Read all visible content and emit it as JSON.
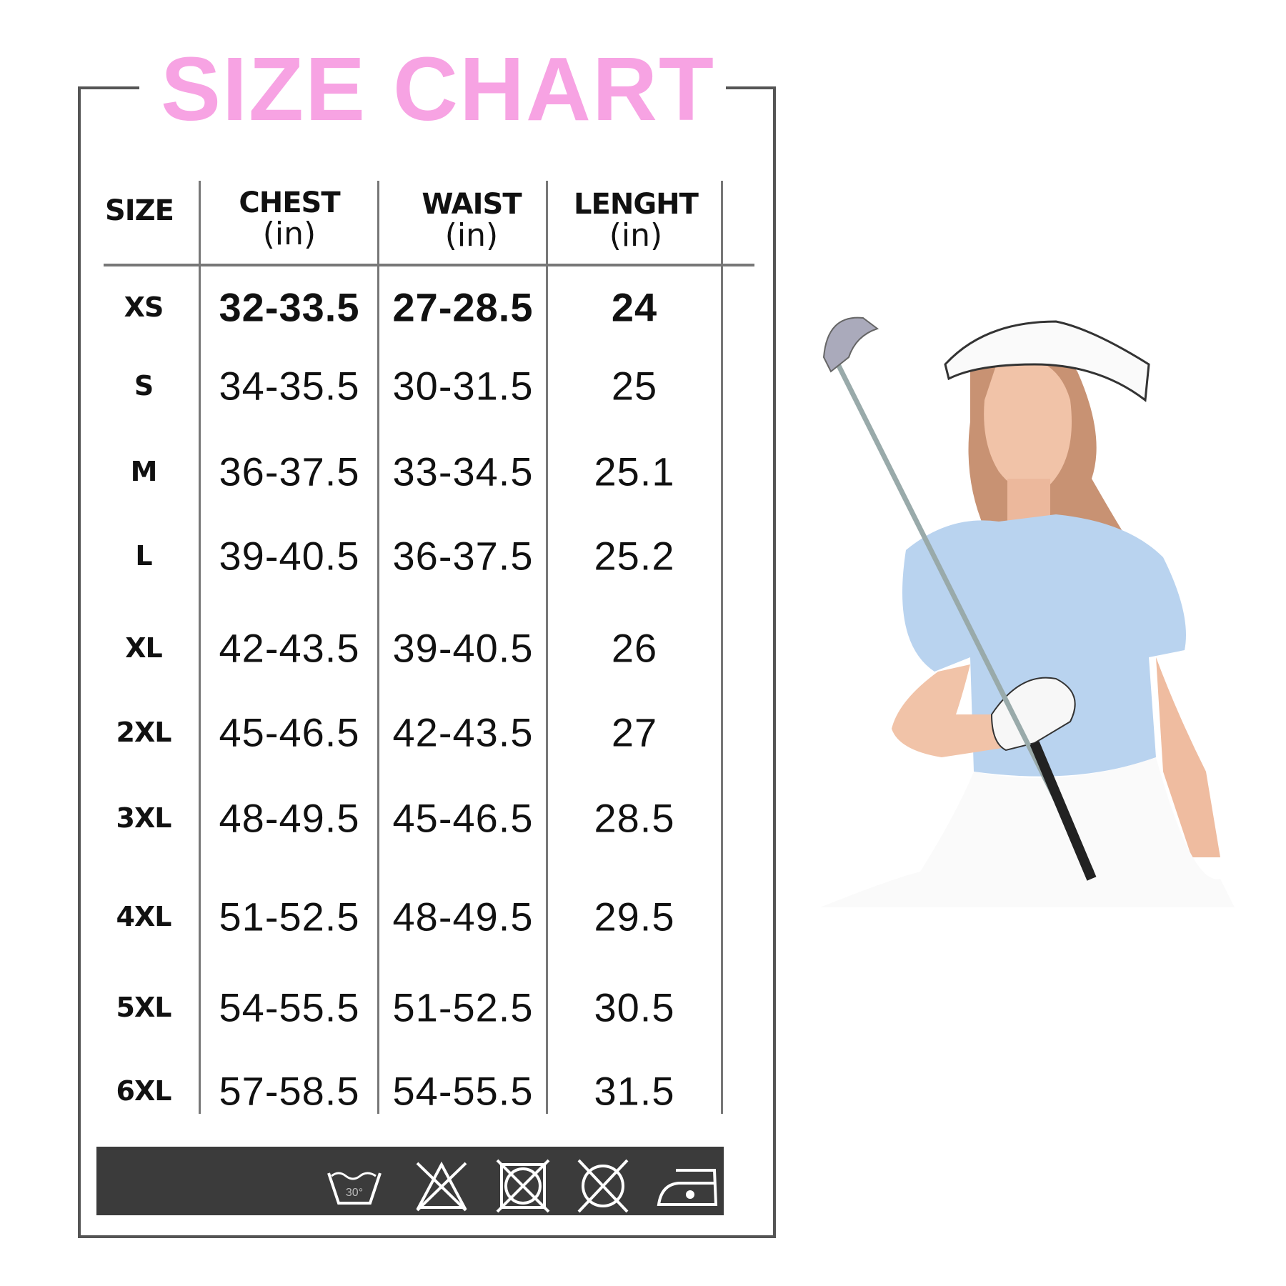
{
  "title": "SIZE CHART",
  "colors": {
    "title": "#f7a3e3",
    "frame": "#555555",
    "care_bar": "#3b3b3b"
  },
  "headers": [
    {
      "name": "SIZE",
      "unit": ""
    },
    {
      "name": "CHEST",
      "unit": "(in)"
    },
    {
      "name": "WAIST",
      "unit": "(in)"
    },
    {
      "name": "LENGHT",
      "unit": "(in)"
    }
  ],
  "rows": [
    {
      "size": "XS",
      "chest": "32-33.5",
      "waist": "27-28.5",
      "length": "24"
    },
    {
      "size": "S",
      "chest": "34-35.5",
      "waist": "30-31.5",
      "length": "25"
    },
    {
      "size": "M",
      "chest": "36-37.5",
      "waist": "33-34.5",
      "length": "25.1"
    },
    {
      "size": "L",
      "chest": "39-40.5",
      "waist": "36-37.5",
      "length": "25.2"
    },
    {
      "size": "XL",
      "chest": "42-43.5",
      "waist": "39-40.5",
      "length": "26"
    },
    {
      "size": "2XL",
      "chest": "45-46.5",
      "waist": "42-43.5",
      "length": "27"
    },
    {
      "size": "3XL",
      "chest": "48-49.5",
      "waist": "45-46.5",
      "length": "28.5"
    },
    {
      "size": "4XL",
      "chest": "51-52.5",
      "waist": "48-49.5",
      "length": "29.5"
    },
    {
      "size": "5XL",
      "chest": "54-55.5",
      "waist": "51-52.5",
      "length": "30.5"
    },
    {
      "size": "6XL",
      "chest": "57-58.5",
      "waist": "54-55.5",
      "length": "31.5"
    }
  ],
  "care_icons": [
    {
      "icon": "wash-30-icon",
      "label": "30°"
    },
    {
      "icon": "no-bleach-icon"
    },
    {
      "icon": "no-tumble-dry-icon"
    },
    {
      "icon": "no-dry-clean-icon"
    },
    {
      "icon": "iron-low-icon"
    }
  ]
}
